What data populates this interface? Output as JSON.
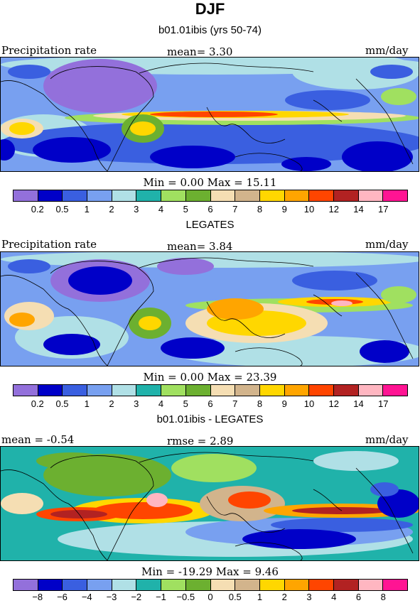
{
  "title": "DJF",
  "panels": [
    {
      "subtitle": "b01.01ibis (yrs 50-74)",
      "left_label": "Precipitation rate",
      "center_label": "mean=   3.30",
      "right_label": "mm/day",
      "stats": "Min =   0.00 Max =  15.11",
      "scale": "abs",
      "field_mean": 3.3,
      "field_min": 0.0,
      "field_max": 15.11
    },
    {
      "subtitle": "LEGATES",
      "left_label": "Precipitation rate",
      "center_label": "mean=   3.84",
      "right_label": "mm/day",
      "stats": "Min =   0.00 Max =  23.39",
      "scale": "abs",
      "field_mean": 3.84,
      "field_min": 0.0,
      "field_max": 23.39
    },
    {
      "subtitle": "b01.01ibis - LEGATES",
      "left_label": "mean =  -0.54",
      "center_label": "rmse =    2.89",
      "right_label": "mm/day",
      "stats": "Min = -19.29 Max =    9.46",
      "scale": "diff",
      "field_mean": -0.54,
      "field_rmse": 2.89,
      "field_min": -19.29,
      "field_max": 9.46
    }
  ],
  "colorbars": {
    "abs": {
      "colors": [
        "#9370db",
        "#0000c8",
        "#3a5fe0",
        "#78a0f0",
        "#b0e0e6",
        "#20b2aa",
        "#a0e060",
        "#6cb030",
        "#f5deb3",
        "#d2b48c",
        "#ffd700",
        "#ffa500",
        "#ff4500",
        "#b22222",
        "#ffb6c1",
        "#ff1493"
      ],
      "ticks": [
        "0.2",
        "0.5",
        "1",
        "2",
        "3",
        "4",
        "5",
        "6",
        "7",
        "8",
        "9",
        "10",
        "12",
        "14",
        "17"
      ]
    },
    "diff": {
      "colors": [
        "#9370db",
        "#0000c8",
        "#3a5fe0",
        "#78a0f0",
        "#b0e0e6",
        "#20b2aa",
        "#a0e060",
        "#6cb030",
        "#f5deb3",
        "#d2b48c",
        "#ffd700",
        "#ffa500",
        "#ff4500",
        "#b22222",
        "#ffb6c1",
        "#ff1493"
      ],
      "ticks": [
        "−8",
        "−6",
        "−4",
        "−3",
        "−2",
        "−1",
        "−0.5",
        "0",
        "0.5",
        "1",
        "2",
        "3",
        "4",
        "6",
        "8"
      ]
    }
  }
}
